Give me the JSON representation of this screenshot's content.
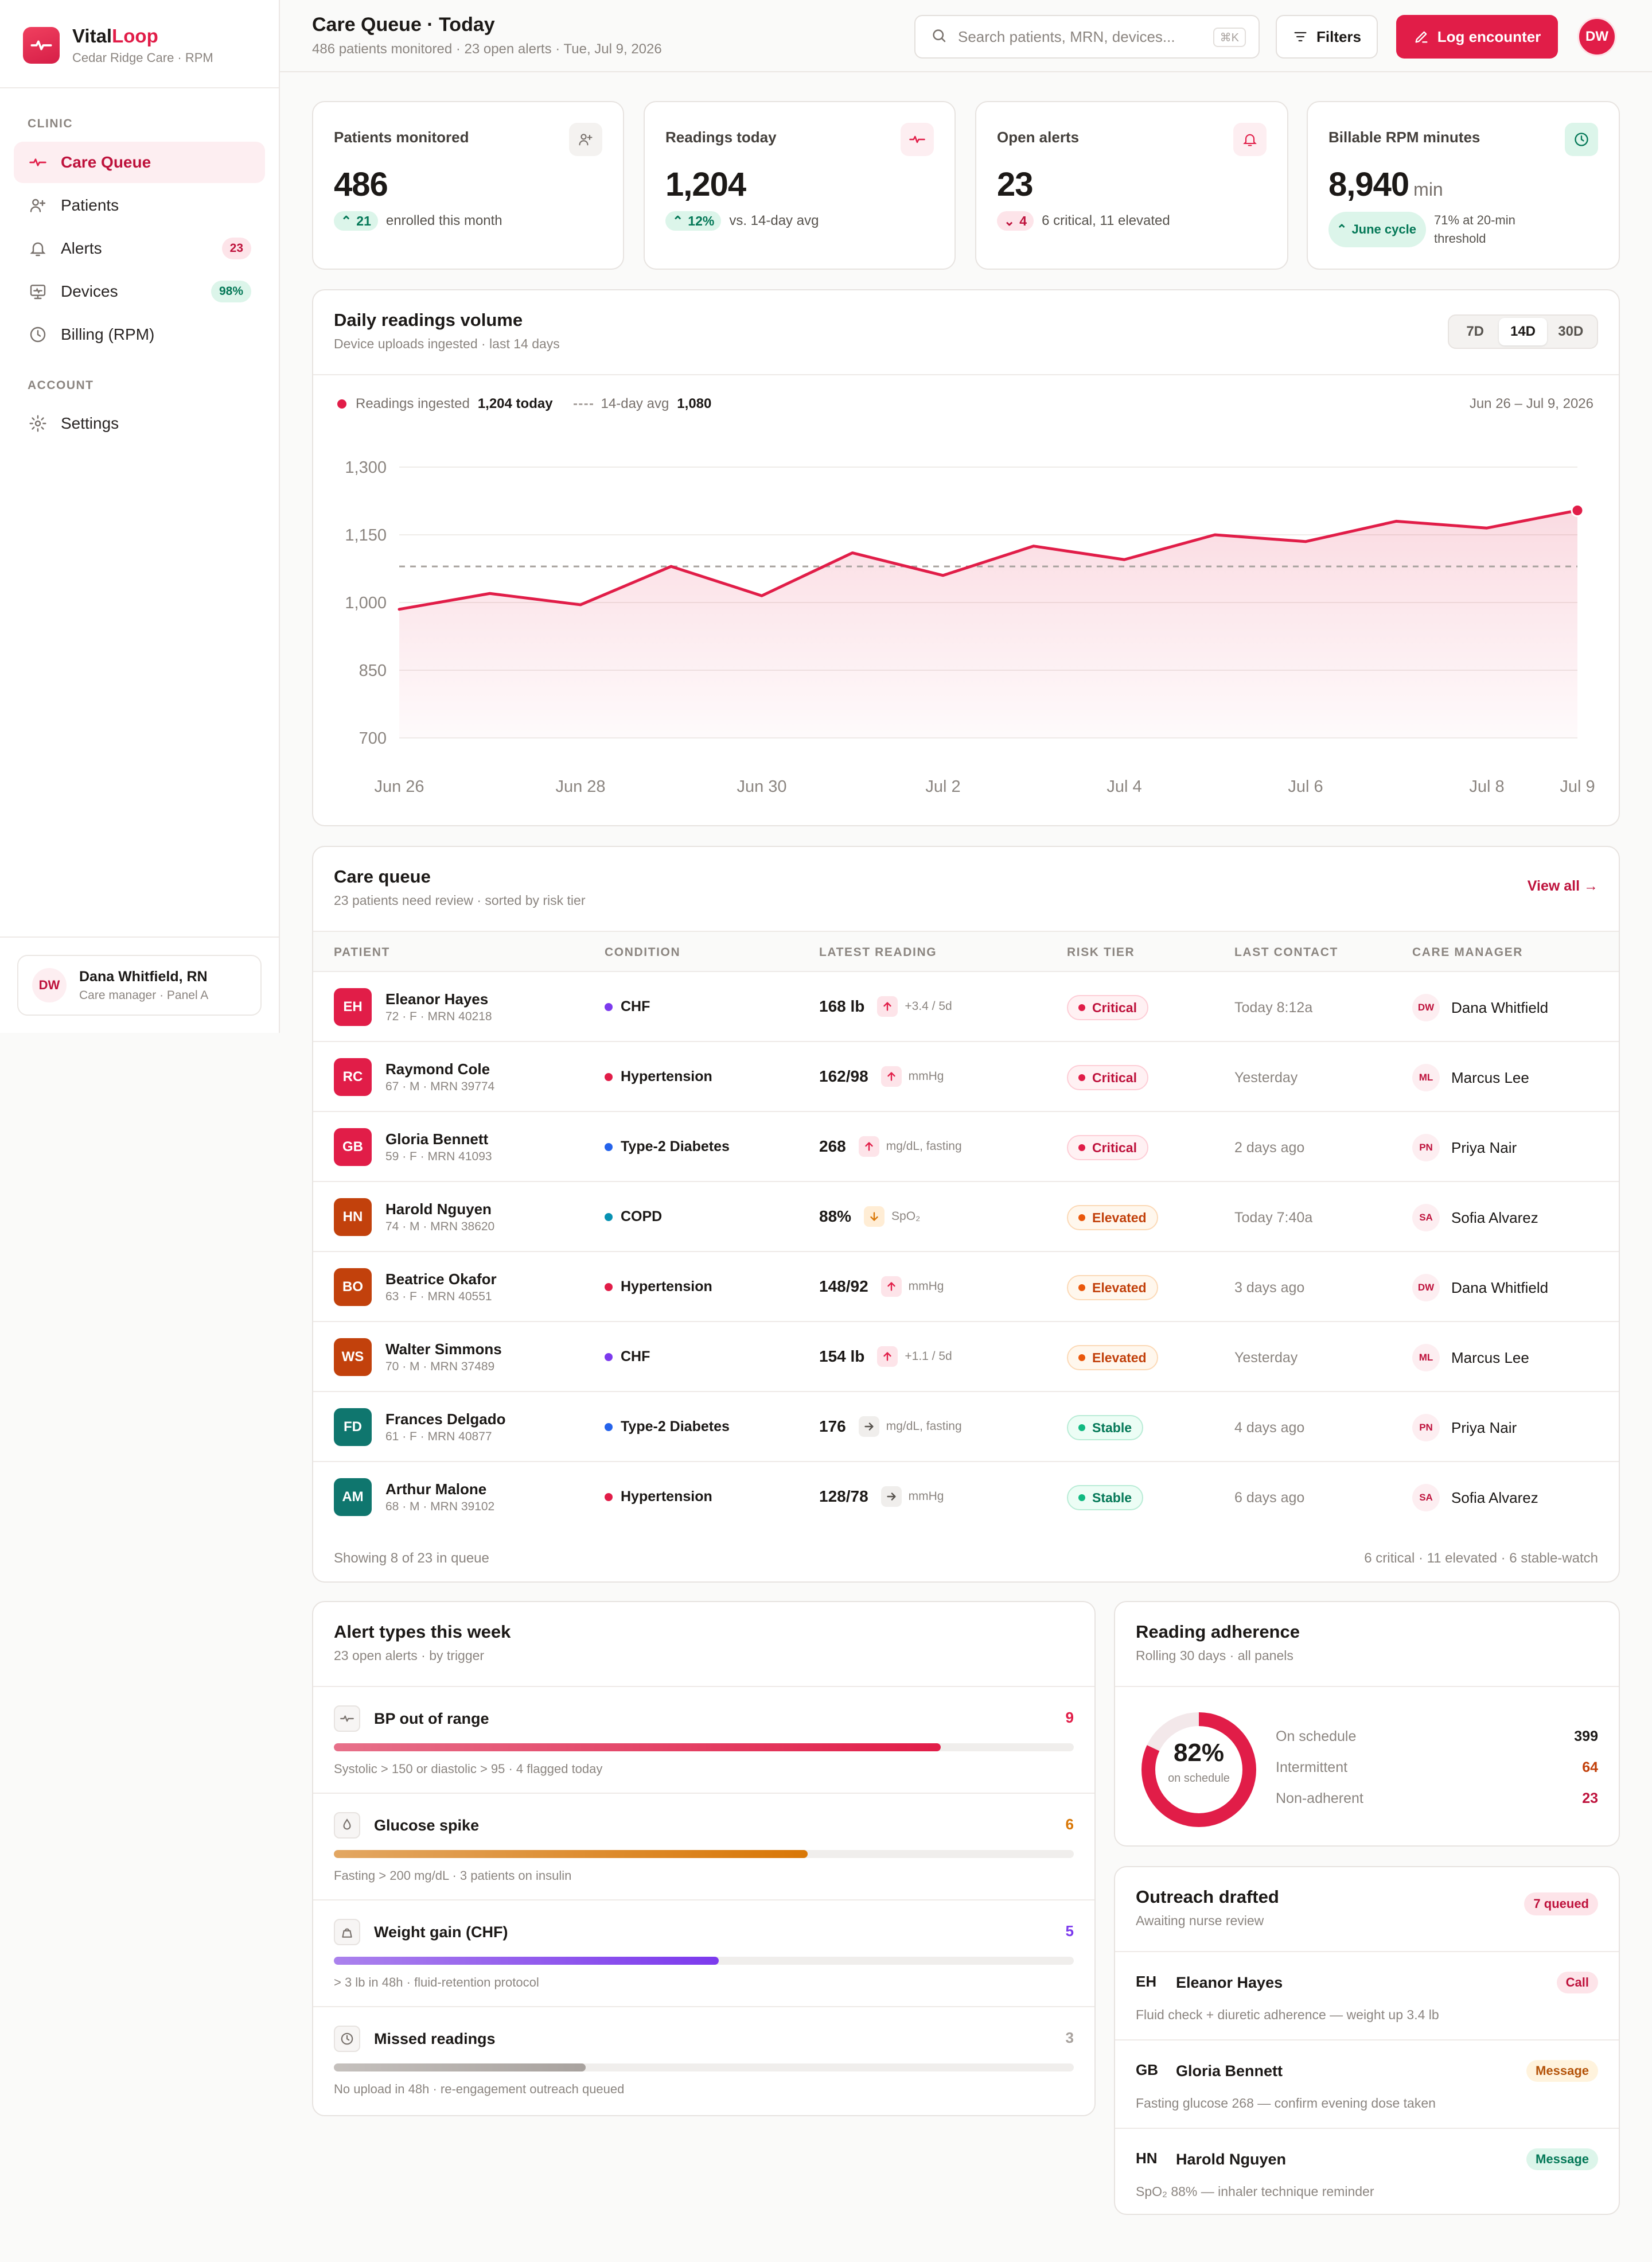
{
  "brand": {
    "name_a": "Vital",
    "name_b": "Loop",
    "sub": "Cedar Ridge Care · RPM"
  },
  "nav": {
    "clinic_label": "CLINIC",
    "account_label": "ACCOUNT",
    "items": [
      {
        "label": "Care Queue",
        "icon": "pulse-icon",
        "active": true
      },
      {
        "label": "Patients",
        "icon": "user-plus-icon"
      },
      {
        "label": "Alerts",
        "icon": "bell-icon",
        "badge": "23"
      },
      {
        "label": "Devices",
        "icon": "monitor-icon",
        "badge": "98%"
      },
      {
        "label": "Billing (RPM)",
        "icon": "clock-icon"
      }
    ],
    "settings": {
      "label": "Settings",
      "icon": "gear-icon"
    }
  },
  "user": {
    "initials": "DW",
    "name": "Dana Whitfield, RN",
    "role": "Care manager · Panel A"
  },
  "header": {
    "title": "Care Queue · Today",
    "subtitle": "486 patients monitored · 23 open alerts · Tue, Jul 9, 2026",
    "search_placeholder": "Search patients, MRN, devices...",
    "search_kbd": "⌘K",
    "filters": "Filters",
    "log": "Log encounter",
    "avatar": "DW"
  },
  "kpis": [
    {
      "label": "Patients monitored",
      "value": "486",
      "unit": "",
      "delta": "21",
      "dir": "up",
      "note": "enrolled this month",
      "icon": "user-plus-icon"
    },
    {
      "label": "Readings today",
      "value": "1,204",
      "unit": "",
      "delta": "12%",
      "dir": "up",
      "note": "vs. 14-day avg",
      "icon": "pulse-icon"
    },
    {
      "label": "Open alerts",
      "value": "23",
      "unit": "",
      "delta": "4",
      "dir": "down",
      "note": "6 critical, 11 elevated",
      "icon": "bell-icon"
    },
    {
      "label": "Billable RPM minutes",
      "value": "8,940",
      "unit": "min",
      "delta": "June cycle",
      "dir": "up",
      "note": "71% at 20-min threshold",
      "icon": "clock-icon"
    }
  ],
  "chart_section": {
    "title": "Daily readings volume",
    "subtitle": "Device uploads ingested · last 14 days",
    "ranges": [
      "7D",
      "14D",
      "30D"
    ],
    "active_range": "14D",
    "legend_series_label": "Readings ingested",
    "legend_series_value": "1,204 today",
    "legend_avg_label": "14-day avg",
    "legend_avg_value": "1,080",
    "date_range": "Jun 26 – Jul 9, 2026"
  },
  "chart_data": {
    "type": "area",
    "x": [
      "Jun 26",
      "Jun 27",
      "Jun 28",
      "Jun 29",
      "Jun 30",
      "Jul 1",
      "Jul 2",
      "Jul 3",
      "Jul 4",
      "Jul 5",
      "Jul 6",
      "Jul 7",
      "Jul 8",
      "Jul 9"
    ],
    "x_tick_labels": [
      "Jun 26",
      "Jun 28",
      "Jun 30",
      "Jul 2",
      "Jul 4",
      "Jul 6",
      "Jul 8",
      "Jul 9"
    ],
    "series": [
      {
        "name": "Readings ingested",
        "values": [
          985,
          1020,
          995,
          1080,
          1015,
          1110,
          1060,
          1125,
          1095,
          1150,
          1135,
          1180,
          1165,
          1204
        ]
      }
    ],
    "average": 1080,
    "y_ticks": [
      700,
      850,
      1000,
      1150,
      1300
    ],
    "y_tick_labels": [
      "700",
      "850",
      "1,000",
      "1,150",
      "1,300"
    ],
    "ylim": [
      700,
      1300
    ],
    "grid": true,
    "colors": {
      "line": "#e11d48",
      "avg": "#a8a29e"
    }
  },
  "queue": {
    "title": "Care queue",
    "subtitle": "23 patients need review · sorted by risk tier",
    "view_all": "View all →",
    "columns": [
      "PATIENT",
      "CONDITION",
      "LATEST READING",
      "RISK TIER",
      "LAST CONTACT",
      "CARE MANAGER"
    ],
    "rows": [
      {
        "initials": "EH",
        "name": "Eleanor Hayes",
        "meta": "72 · F · MRN 40218",
        "condition": "CHF",
        "value": "168 lb",
        "trend": "up",
        "unit": "+3.4 / 5d",
        "tier": "Critical",
        "contact": "Today 8:12a",
        "mgr_initials": "DW",
        "mgr": "Dana Whitfield"
      },
      {
        "initials": "RC",
        "name": "Raymond Cole",
        "meta": "67 · M · MRN 39774",
        "condition": "Hypertension",
        "value": "162/98",
        "trend": "up",
        "unit": "mmHg",
        "tier": "Critical",
        "contact": "Yesterday",
        "mgr_initials": "ML",
        "mgr": "Marcus Lee"
      },
      {
        "initials": "GB",
        "name": "Gloria Bennett",
        "meta": "59 · F · MRN 41093",
        "condition": "Type-2 Diabetes",
        "value": "268",
        "trend": "up",
        "unit": "mg/dL, fasting",
        "tier": "Critical",
        "contact": "2 days ago",
        "mgr_initials": "PN",
        "mgr": "Priya Nair"
      },
      {
        "initials": "HN",
        "name": "Harold Nguyen",
        "meta": "74 · M · MRN 38620",
        "condition": "COPD",
        "value": "88%",
        "trend": "down",
        "unit": "SpO₂",
        "tier": "Elevated",
        "contact": "Today 7:40a",
        "mgr_initials": "SA",
        "mgr": "Sofia Alvarez"
      },
      {
        "initials": "BO",
        "name": "Beatrice Okafor",
        "meta": "63 · F · MRN 40551",
        "condition": "Hypertension",
        "value": "148/92",
        "trend": "up",
        "unit": "mmHg",
        "tier": "Elevated",
        "contact": "3 days ago",
        "mgr_initials": "DW",
        "mgr": "Dana Whitfield"
      },
      {
        "initials": "WS",
        "name": "Walter Simmons",
        "meta": "70 · M · MRN 37489",
        "condition": "CHF",
        "value": "154 lb",
        "trend": "up",
        "unit": "+1.1 / 5d",
        "tier": "Elevated",
        "contact": "Yesterday",
        "mgr_initials": "ML",
        "mgr": "Marcus Lee"
      },
      {
        "initials": "FD",
        "name": "Frances Delgado",
        "meta": "61 · F · MRN 40877",
        "condition": "Type-2 Diabetes",
        "value": "176",
        "trend": "flat",
        "unit": "mg/dL, fasting",
        "tier": "Stable",
        "contact": "4 days ago",
        "mgr_initials": "PN",
        "mgr": "Priya Nair"
      },
      {
        "initials": "AM",
        "name": "Arthur Malone",
        "meta": "68 · M · MRN 39102",
        "condition": "Hypertension",
        "value": "128/78",
        "trend": "flat",
        "unit": "mmHg",
        "tier": "Stable",
        "contact": "6 days ago",
        "mgr_initials": "SA",
        "mgr": "Sofia Alvarez"
      }
    ],
    "footer_left": "Showing 8 of 23 in queue",
    "footer_right": "6 critical · 11 elevated · 6 stable-watch"
  },
  "alert_types": {
    "title": "Alert types this week",
    "subtitle": "23 open alerts · by trigger",
    "items": [
      {
        "name": "BP out of range",
        "count": "9",
        "fraction": 0.82,
        "desc": "Systolic > 150 or diastolic > 95 · 4 flagged today",
        "icon": "pulse-icon",
        "color": "#e11d48"
      },
      {
        "name": "Glucose spike",
        "count": "6",
        "fraction": 0.64,
        "desc": "Fasting > 200 mg/dL · 3 patients on insulin",
        "icon": "drop-icon",
        "color": "#d97706"
      },
      {
        "name": "Weight gain (CHF)",
        "count": "5",
        "fraction": 0.52,
        "desc": "> 3 lb in 48h · fluid-retention protocol",
        "icon": "scale-icon",
        "color": "#7c3aed"
      },
      {
        "name": "Missed readings",
        "count": "3",
        "fraction": 0.34,
        "desc": "No upload in 48h · re-engagement outreach queued",
        "icon": "clock-icon",
        "color": "#a8a29e"
      }
    ]
  },
  "adherence": {
    "title": "Reading adherence",
    "subtitle": "Rolling 30 days · all panels",
    "percent": "82%",
    "percent_value": 0.82,
    "center_label": "on schedule",
    "rows": [
      {
        "label": "On schedule",
        "value": "399",
        "color": "#1c1917"
      },
      {
        "label": "Intermittent",
        "value": "64",
        "color": "#c2410c"
      },
      {
        "label": "Non-adherent",
        "value": "23",
        "color": "#be123c"
      }
    ]
  },
  "outreach": {
    "title": "Outreach drafted",
    "subtitle": "Awaiting nurse review",
    "badge": "7 queued",
    "items": [
      {
        "initials": "EH",
        "name": "Eleanor Hayes",
        "type": "Call",
        "desc": "Fluid check + diuretic adherence — weight up 3.4 lb"
      },
      {
        "initials": "GB",
        "name": "Gloria Bennett",
        "type": "Message",
        "desc": "Fasting glucose 268 — confirm evening dose taken"
      },
      {
        "initials": "HN",
        "name": "Harold Nguyen",
        "type": "Message",
        "desc": "SpO₂ 88% — inhaler technique reminder"
      }
    ]
  }
}
